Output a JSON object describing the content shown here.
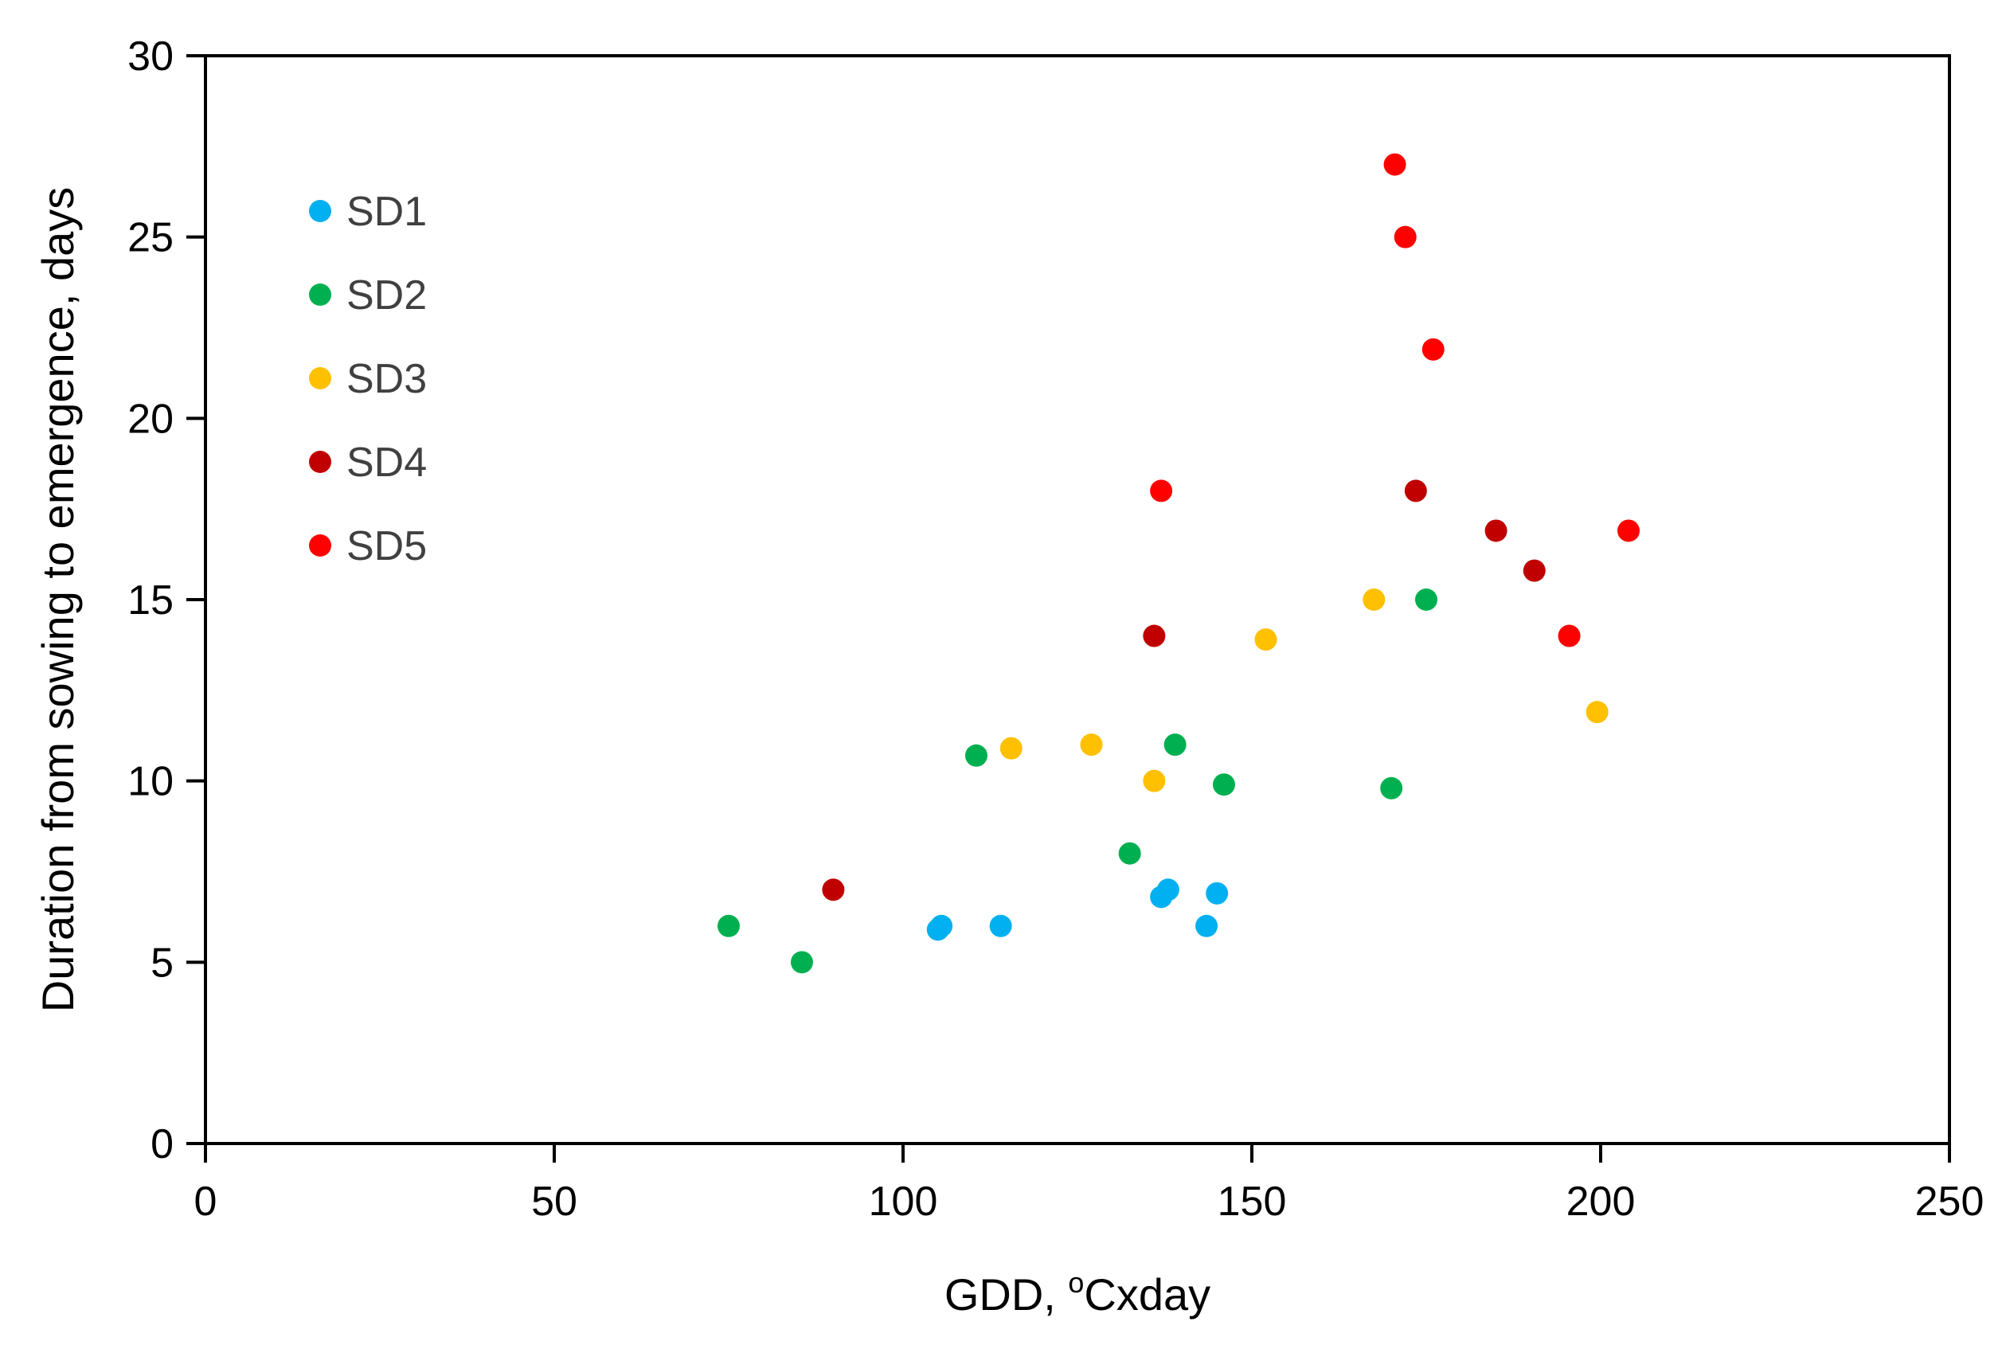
{
  "chart_data": {
    "type": "scatter",
    "title": "",
    "xlabel_prefix": "GDD, ",
    "xlabel_sup": "o",
    "xlabel_suffix": "Cxday",
    "ylabel": "Duration from sowing to emergence,  days",
    "xlim": [
      0,
      250
    ],
    "ylim": [
      0,
      30
    ],
    "x_ticks": [
      0,
      50,
      100,
      150,
      200,
      250
    ],
    "y_ticks": [
      0,
      5,
      10,
      15,
      20,
      25,
      30
    ],
    "grid": false,
    "legend_position": "top-left",
    "series": [
      {
        "name": "SD1",
        "color": "#00b0f0",
        "points": [
          [
            105,
            5.9
          ],
          [
            105.5,
            6
          ],
          [
            114,
            6
          ],
          [
            137,
            6.8
          ],
          [
            138,
            7
          ],
          [
            143.5,
            6
          ],
          [
            145,
            6.9
          ]
        ]
      },
      {
        "name": "SD2",
        "color": "#00b050",
        "points": [
          [
            75,
            6
          ],
          [
            85.5,
            5
          ],
          [
            110.5,
            10.7
          ],
          [
            132.5,
            8
          ],
          [
            139,
            11
          ],
          [
            146,
            9.9
          ],
          [
            170,
            9.8
          ],
          [
            175,
            15
          ]
        ]
      },
      {
        "name": "SD3",
        "color": "#ffc000",
        "points": [
          [
            115.5,
            10.9
          ],
          [
            127,
            11
          ],
          [
            136,
            10
          ],
          [
            152,
            13.9
          ],
          [
            167.5,
            15
          ],
          [
            199.5,
            11.9
          ]
        ]
      },
      {
        "name": "SD4",
        "color": "#c00000",
        "points": [
          [
            90,
            7
          ],
          [
            136,
            14
          ],
          [
            173.5,
            18
          ],
          [
            185,
            16.9
          ],
          [
            190.5,
            15.8
          ]
        ]
      },
      {
        "name": "SD5",
        "color": "#ff0000",
        "points": [
          [
            137,
            18
          ],
          [
            170.5,
            27
          ],
          [
            172,
            25
          ],
          [
            176,
            21.9
          ],
          [
            195.5,
            14
          ],
          [
            204,
            16.9
          ]
        ]
      }
    ]
  }
}
